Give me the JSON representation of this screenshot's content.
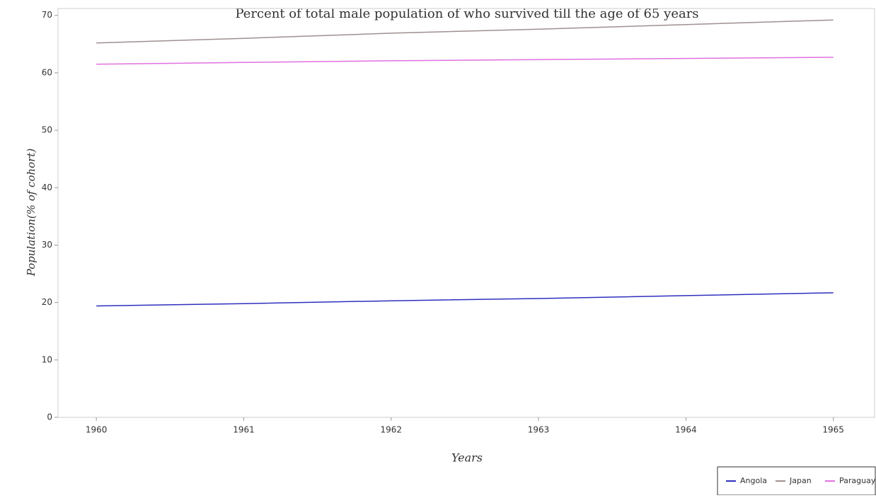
{
  "chart_data": {
    "type": "line",
    "title": "Percent of total male population of who survived till the age of 65 years",
    "xlabel": "Years",
    "ylabel": "Population(% of cohort)",
    "x": [
      1960,
      1961,
      1962,
      1963,
      1964,
      1965
    ],
    "series": [
      {
        "name": "Angola",
        "color": "#2f2fbf",
        "values": [
          19.4,
          19.8,
          20.3,
          20.7,
          21.2,
          21.7
        ]
      },
      {
        "name": "Japan",
        "color": "#a08f8f",
        "values": [
          65.2,
          66.0,
          66.9,
          67.6,
          68.4,
          69.2
        ]
      },
      {
        "name": "Paraguay",
        "color": "#e070e0",
        "values": [
          61.5,
          61.8,
          62.1,
          62.3,
          62.5,
          62.7
        ]
      }
    ],
    "xlim": [
      1959.74,
      1965.28
    ],
    "xticks": [
      1960,
      1961,
      1962,
      1963,
      1964,
      1965
    ],
    "ylim": [
      0,
      71.2
    ],
    "yticks": [
      0,
      10,
      20,
      30,
      40,
      50,
      60,
      70
    ],
    "legend": "lower right"
  }
}
